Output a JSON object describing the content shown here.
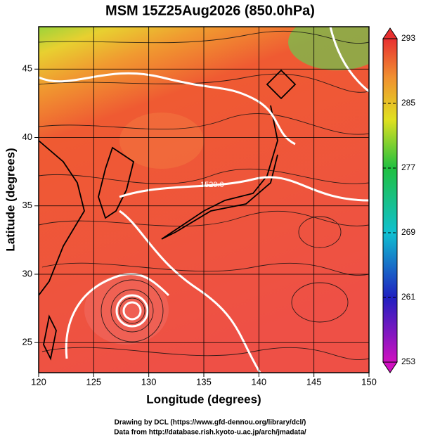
{
  "title": "MSM 15Z25Aug2026 (850.0hPa)",
  "x_axis": {
    "label": "Longitude (degrees)",
    "lim": [
      120,
      150
    ],
    "ticks": [
      120,
      125,
      130,
      135,
      140,
      145,
      150
    ]
  },
  "y_axis": {
    "label": "Latitude  (degrees)",
    "lim": [
      22.8,
      48.1
    ],
    "ticks": [
      25,
      30,
      35,
      40,
      45
    ]
  },
  "colorbar": {
    "lim": [
      253,
      293
    ],
    "ticks": [
      253,
      261,
      269,
      277,
      285,
      293
    ]
  },
  "contour_labels": [
    "1520.0"
  ],
  "footer": [
    "Drawing by DCL (https://www.gfd-dennou.org/library/dcl/)",
    "Data from http://database.rish.kyoto-u.ac.jp/arch/jmadata/"
  ]
}
